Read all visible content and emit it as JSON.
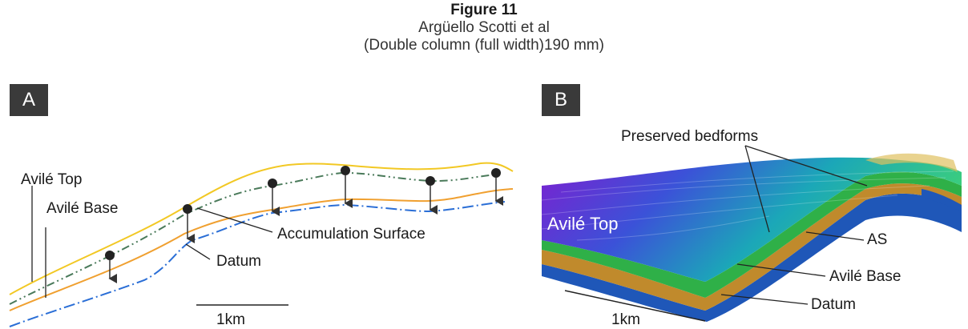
{
  "figure": {
    "title": "Figure 11",
    "authors": "Argüello Scotti et al",
    "format": "(Double column (full width)190 mm)"
  },
  "panel_a": {
    "label": "A",
    "avile_top": "Avilé Top",
    "avile_base": "Avilé Base",
    "accumulation_surface": "Accumulation Surface",
    "datum": "Datum",
    "scale": "1km"
  },
  "panel_b": {
    "label": "B",
    "preserved_bedforms": "Preserved bedforms",
    "avile_top": "Avilé Top",
    "as": "AS",
    "avile_base": "Avilé Base",
    "datum": "Datum",
    "scale": "1km"
  },
  "colors": {
    "avile_top_line": "#f2c824",
    "avile_base_line": "#f0a030",
    "accumulation_line": "#4a7a5a",
    "datum_line": "#2a6ed6",
    "panel_label_bg": "#3a3a3a"
  }
}
